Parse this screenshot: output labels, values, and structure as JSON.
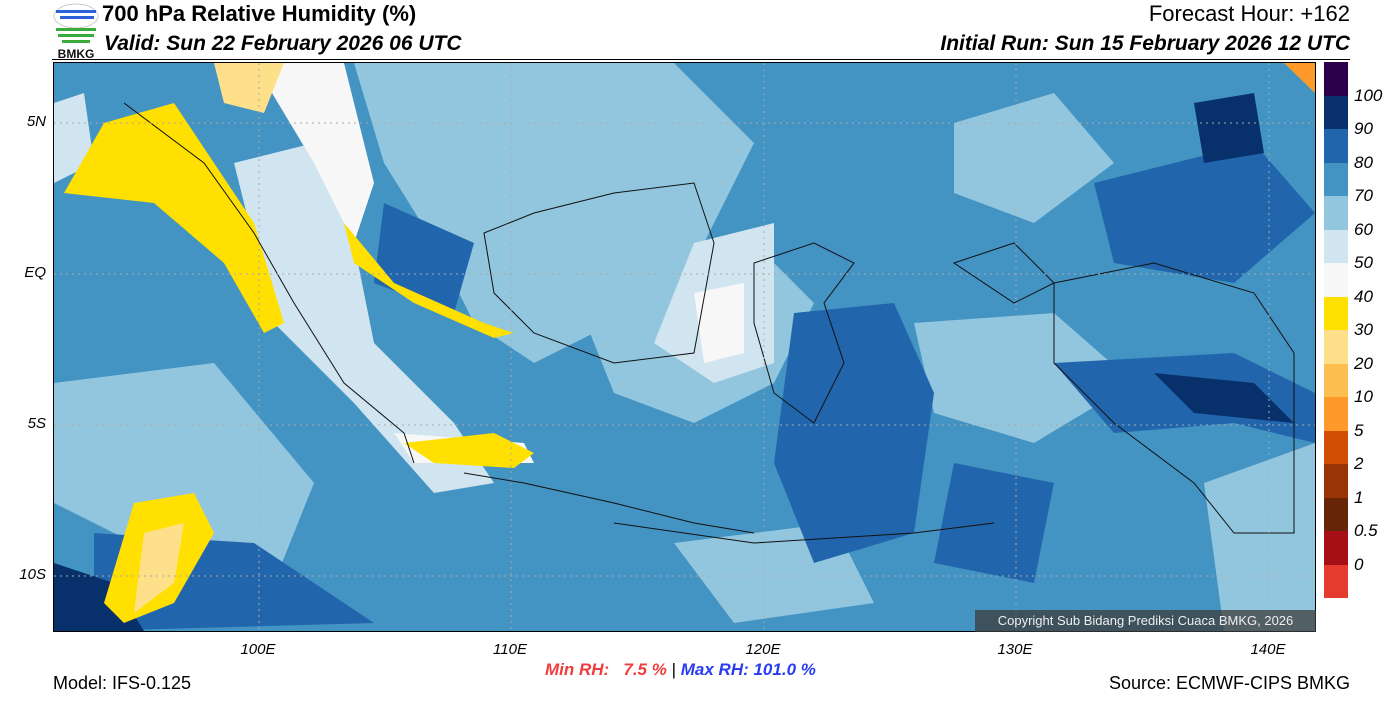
{
  "header": {
    "logo_text": "BMKG",
    "title": "700 hPa Relative Humidity (%)",
    "valid": "Valid: Sun 22 February 2026 06 UTC",
    "forecast_hour": "Forecast Hour: +162",
    "initial_run": "Initial Run: Sun 15 February 2026 12 UTC"
  },
  "axes": {
    "lat_labels": [
      "5N",
      "EQ",
      "5S",
      "10S"
    ],
    "lat_values": [
      5,
      0,
      -5,
      -10
    ],
    "lon_labels": [
      "100E",
      "110E",
      "120E",
      "130E",
      "140E"
    ],
    "lon_values": [
      100,
      110,
      120,
      130,
      140
    ]
  },
  "colorbar": {
    "colors": [
      "#2d004b",
      "#08306b",
      "#2166ac",
      "#4393c3",
      "#92c5de",
      "#d1e5f0",
      "#f7f7f7",
      "#ffe000",
      "#ffe08a",
      "#fdc050",
      "#fd9a2a",
      "#d14e04",
      "#993404",
      "#662506",
      "#a50f15",
      "#e43b2e"
    ],
    "labels": [
      "100",
      "90",
      "80",
      "70",
      "60",
      "50",
      "40",
      "30",
      "20",
      "10",
      "5",
      "2",
      "1",
      "0.5",
      "0"
    ]
  },
  "map": {
    "copyright": "Copyright Sub Bidang Prediksi Cuaca BMKG, 2026"
  },
  "stats": {
    "min": "Min RH:   7.5 %",
    "sep": "|",
    "max": "Max RH: 101.0 %",
    "min_color": "#f03c3c",
    "max_color": "#2a3cf0"
  },
  "footer": {
    "model": "Model: IFS-0.125",
    "source": "Source: ECMWF-CIPS BMKG"
  }
}
